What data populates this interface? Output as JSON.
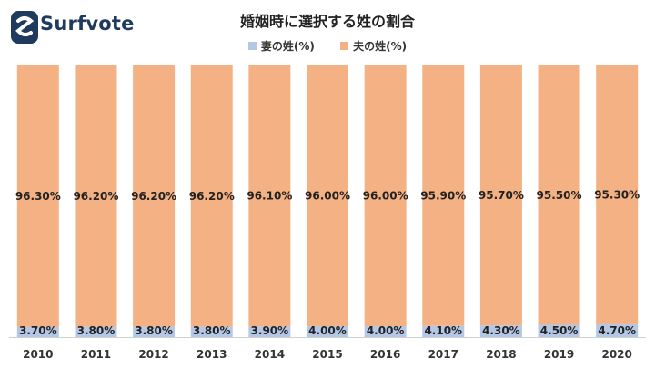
{
  "brand": {
    "name": "Surfvote"
  },
  "colors": {
    "wife": "#b4c7e7",
    "husband": "#f4b183",
    "brand": "#1f3a5f"
  },
  "chart_data": {
    "type": "bar",
    "stacked": true,
    "title": "婚姻時に選択する姓の割合",
    "legend_position": "top",
    "categories": [
      "2010",
      "2011",
      "2012",
      "2013",
      "2014",
      "2015",
      "2016",
      "2017",
      "2018",
      "2019",
      "2020"
    ],
    "series": [
      {
        "name": "妻の姓(%)",
        "values": [
          3.7,
          3.8,
          3.8,
          3.8,
          3.9,
          4.0,
          4.0,
          4.1,
          4.3,
          4.5,
          4.7
        ],
        "labels": [
          "3.70%",
          "3.80%",
          "3.80%",
          "3.80%",
          "3.90%",
          "4.00%",
          "4.00%",
          "4.10%",
          "4.30%",
          "4.50%",
          "4.70%"
        ]
      },
      {
        "name": "夫の姓(%)",
        "values": [
          96.3,
          96.2,
          96.2,
          96.2,
          96.1,
          96.0,
          96.0,
          95.9,
          95.7,
          95.5,
          95.3
        ],
        "labels": [
          "96.30%",
          "96.20%",
          "96.20%",
          "96.20%",
          "96.10%",
          "96.00%",
          "96.00%",
          "95.90%",
          "95.70%",
          "95.50%",
          "95.30%"
        ]
      }
    ],
    "ylim": [
      0,
      100
    ],
    "grid": false
  }
}
